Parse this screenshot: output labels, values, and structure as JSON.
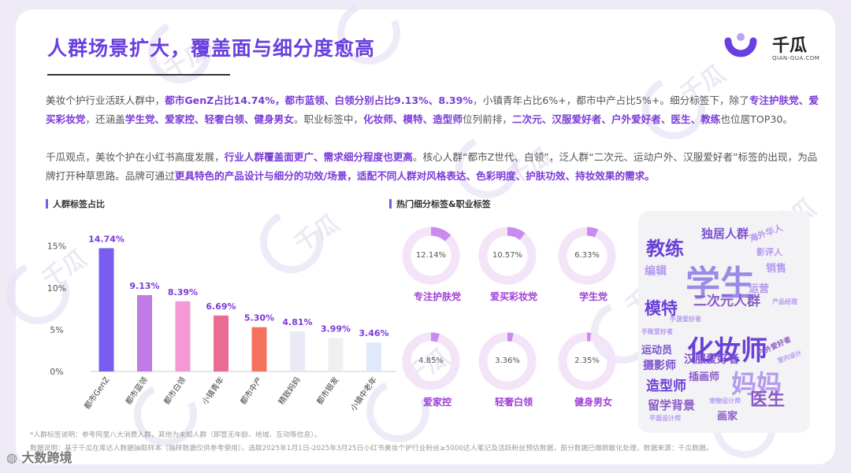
{
  "title": "人群场景扩大，覆盖面与细分度愈高",
  "logo": {
    "name": "千瓜",
    "sub": "QIAN-GUA.COM"
  },
  "paragraph1": {
    "p1": "美妆个护行业活跃人群中，",
    "b1": "都市GenZ占比14.74%，都市蓝领、白领分别占比9.13%、8.39%",
    "p2": "，小镇青年占比6%+，都市中产占比5%+。细分标签下，除了",
    "b2": "专注护肤党、爱买彩妆党",
    "p3": "，还涵盖",
    "b3": "学生党、爱家控、轻奢白领、健身男女",
    "p4": "。职业标签中，",
    "b4": "化妆师、模特、造型师",
    "p5": "位列前排，",
    "b5": "二次元、汉服爱好者、户外爱好者、医生、教练",
    "p6": "也位居TOP30。"
  },
  "paragraph2": {
    "p1": "千瓜观点，美妆个护在小红书高度发展，",
    "b1": "行业人群覆盖面更广、需求细分程度也更高",
    "p2": "。核心人群“都市Z世代、白领”，泛人群“二次元、运动户外、汉服爱好者”标签的出现，为品牌打开种草思路。品牌可通过",
    "b2": "更具特色的产品设计与细分的功效/场景，适配不同人群对风格表达、色彩明度、护肤功效、持妆效果的需求。"
  },
  "sections": {
    "left": "人群标签占比",
    "right": "热门细分标签&职业标签"
  },
  "chart_data": [
    {
      "type": "bar",
      "title": "人群标签占比",
      "categories": [
        "都市GenZ",
        "都市蓝领",
        "都市白领",
        "小镇青年",
        "都市中产",
        "精致妈妈",
        "都市银发",
        "小镇中老年"
      ],
      "values": [
        14.74,
        9.13,
        8.39,
        6.69,
        5.3,
        4.81,
        3.99,
        3.46
      ],
      "value_labels": [
        "14.74%",
        "9.13%",
        "8.39%",
        "6.69%",
        "5.30%",
        "4.81%",
        "3.99%",
        "3.46%"
      ],
      "colors": [
        "#7a5cf0",
        "#c07be6",
        "#f39ad6",
        "#ea6c93",
        "#f5735d",
        "#ece9f7",
        "#efefef",
        "#dfe9fb"
      ],
      "ylim": [
        0,
        16
      ],
      "yticks": [
        0,
        5,
        10,
        15
      ],
      "ytick_labels": [
        "0%",
        "5%",
        "10%",
        "15%"
      ]
    },
    {
      "type": "pie",
      "title": "热门细分标签&职业标签",
      "categories": [
        "专注护肤党",
        "爱买彩妆党",
        "学生党",
        "爱家控",
        "轻奢白领",
        "健身男女"
      ],
      "values": [
        12.14,
        10.57,
        6.33,
        4.85,
        3.36,
        2.35
      ],
      "value_labels": [
        "12.14%",
        "10.57%",
        "6.33%",
        "4.85%",
        "3.36%",
        "2.35%"
      ],
      "colors": {
        "fill": "#c98bf0",
        "track": "#f3e4f8",
        "label": "#a03ed6"
      }
    }
  ],
  "word_cloud": [
    {
      "t": "学生",
      "c": "#9b8ae6",
      "s": 44
    },
    {
      "t": "化妆师",
      "c": "#6a40d8",
      "s": 34
    },
    {
      "t": "妈妈",
      "c": "#b59af0",
      "s": 32
    },
    {
      "t": "教练",
      "c": "#6a40d8",
      "s": 24
    },
    {
      "t": "医生",
      "c": "#8b5cc8",
      "s": 22
    },
    {
      "t": "模特",
      "c": "#6a40d8",
      "s": 21
    },
    {
      "t": "二次元人群",
      "c": "#8b5cc8",
      "s": 17
    },
    {
      "t": "独居人群",
      "c": "#7a50d0",
      "s": 15
    },
    {
      "t": "造型师",
      "c": "#6a40d8",
      "s": 17
    },
    {
      "t": "留学背景",
      "c": "#8b5cc8",
      "s": 15
    },
    {
      "t": "汉服爱好者",
      "c": "#7a50d0",
      "s": 14
    },
    {
      "t": "摄影师",
      "c": "#7a50d0",
      "s": 14
    },
    {
      "t": "插画师",
      "c": "#8b5cc8",
      "s": 13
    },
    {
      "t": "运动员",
      "c": "#7a50d0",
      "s": 13
    },
    {
      "t": "画家",
      "c": "#8b5cc8",
      "s": 13
    },
    {
      "t": "编辑",
      "c": "#b59af0",
      "s": 14
    },
    {
      "t": "运营",
      "c": "#b59af0",
      "s": 13
    },
    {
      "t": "销售",
      "c": "#b59af0",
      "s": 13
    },
    {
      "t": "海外华人",
      "c": "#b59af0",
      "s": 11
    },
    {
      "t": "影评人",
      "c": "#b59af0",
      "s": 11
    },
    {
      "t": "户外爱好者",
      "c": "#8b5cc8",
      "s": 9
    },
    {
      "t": "手账爱好者",
      "c": "#b59af0",
      "s": 8
    },
    {
      "t": "宠物设计师",
      "c": "#b59af0",
      "s": 8
    },
    {
      "t": "平面设计师",
      "c": "#b59af0",
      "s": 8
    },
    {
      "t": "产品经理",
      "c": "#b59af0",
      "s": 8
    },
    {
      "t": "手游爱好者",
      "c": "#b59af0",
      "s": 8
    },
    {
      "t": "室内设计",
      "c": "#b59af0",
      "s": 8
    }
  ],
  "footnotes": {
    "line1": "*人群标签说明：参考阿里八大消费人群，其他为未知人群（即暂无年龄、地域、互动等信息）。",
    "line2": "数据说明：基于千瓜在库达人数据抽取样本（抽样数据仅供参考使用），选取2025年1月1日-2025年3月25日小红书美妆个护行业粉丝≥5000达人笔记及活跃粉丝预估数据，部分数据已做脱敏化处理，数据来源：千瓜数据。"
  },
  "source_brand": "大数跨境",
  "watermark": "千瓜",
  "watermark_sub": "QIAN-GUA.COM"
}
